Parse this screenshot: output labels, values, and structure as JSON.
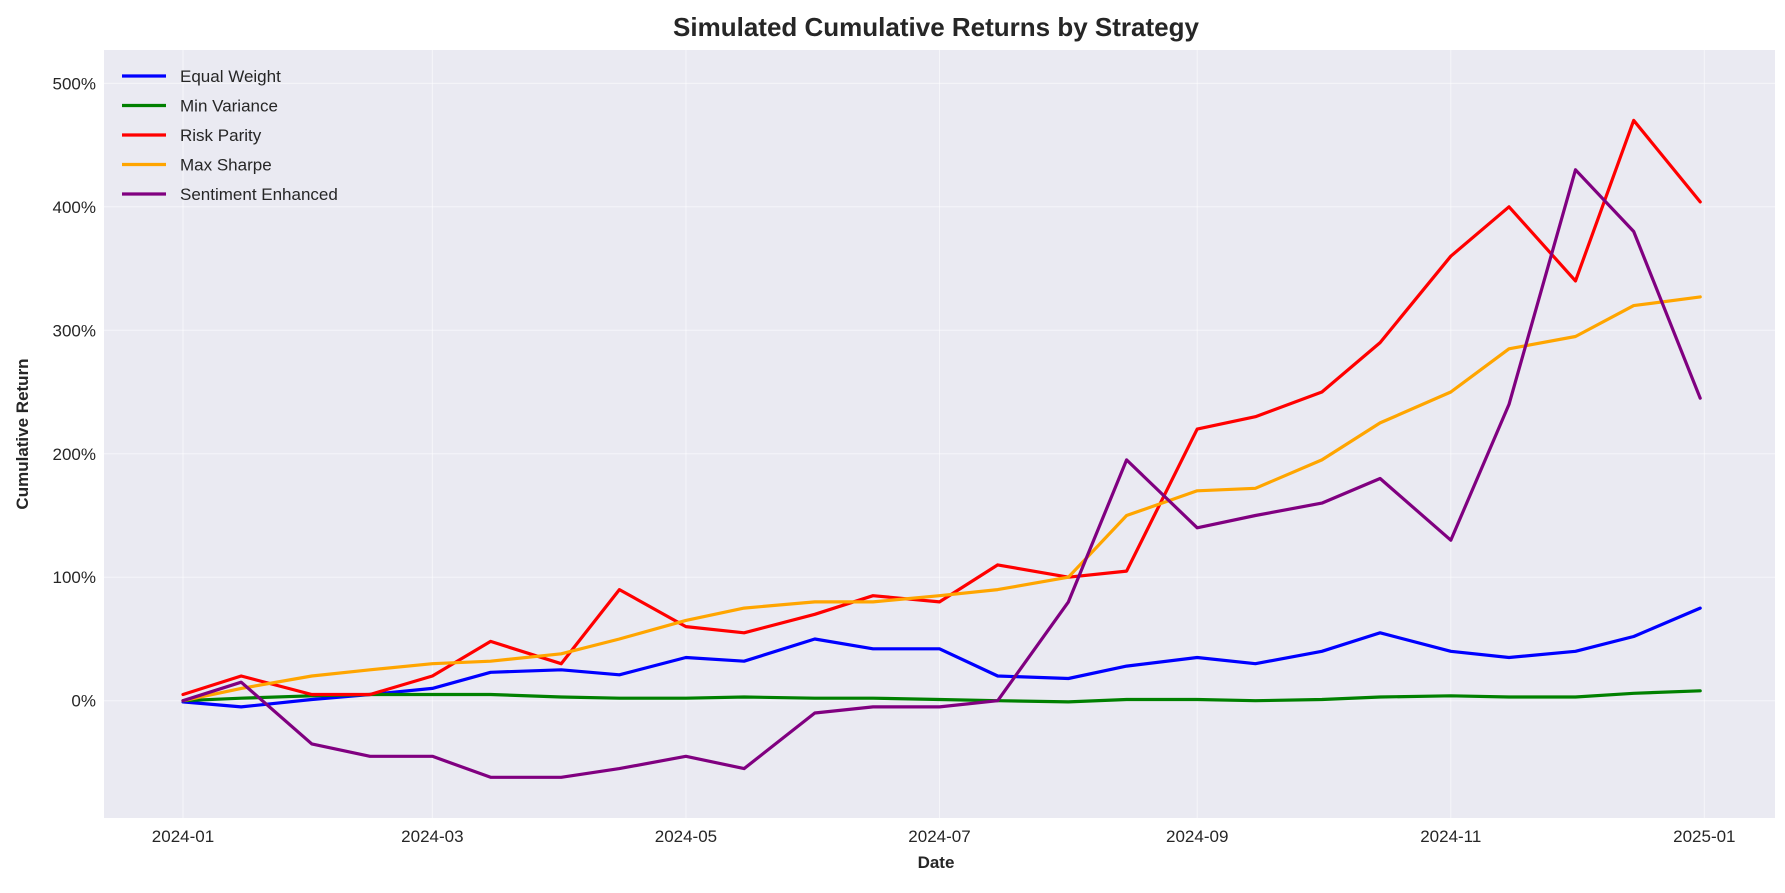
{
  "chart_data": {
    "type": "line",
    "title": "Simulated Cumulative Returns by Strategy",
    "xlabel": "Date",
    "ylabel": "Cumulative Return",
    "x_ticks": [
      "2024-01",
      "2024-03",
      "2024-05",
      "2024-07",
      "2024-09",
      "2024-11",
      "2025-01"
    ],
    "y_ticks": [
      "0%",
      "100%",
      "200%",
      "300%",
      "400%",
      "500%"
    ],
    "xlim": [
      "2023-12-13",
      "2025-01-18"
    ],
    "ylim": [
      -95,
      527
    ],
    "grid": true,
    "legend_position": "top-left",
    "x": [
      "2024-01-01",
      "2024-01-15",
      "2024-02-01",
      "2024-02-15",
      "2024-03-01",
      "2024-03-15",
      "2024-04-01",
      "2024-04-15",
      "2024-05-01",
      "2024-05-15",
      "2024-06-01",
      "2024-06-15",
      "2024-07-01",
      "2024-07-15",
      "2024-08-01",
      "2024-08-15",
      "2024-09-01",
      "2024-09-15",
      "2024-10-01",
      "2024-10-15",
      "2024-11-01",
      "2024-11-15",
      "2024-12-01",
      "2024-12-15",
      "2024-12-31"
    ],
    "series": [
      {
        "name": "Equal Weight",
        "color": "#0000ff",
        "values": [
          -1,
          -5,
          1,
          5,
          10,
          23,
          25,
          21,
          35,
          32,
          50,
          42,
          42,
          20,
          18,
          28,
          35,
          30,
          40,
          55,
          40,
          35,
          40,
          52,
          75
        ]
      },
      {
        "name": "Min Variance",
        "color": "#008000",
        "values": [
          0,
          2,
          4,
          5,
          5,
          5,
          3,
          2,
          2,
          3,
          2,
          2,
          1,
          0,
          -1,
          1,
          1,
          0,
          1,
          3,
          4,
          3,
          3,
          6,
          8
        ]
      },
      {
        "name": "Risk Parity",
        "color": "#ff0000",
        "values": [
          5,
          20,
          5,
          5,
          20,
          48,
          30,
          90,
          60,
          55,
          70,
          85,
          80,
          110,
          100,
          105,
          220,
          230,
          250,
          290,
          360,
          400,
          340,
          470,
          404
        ]
      },
      {
        "name": "Max Sharpe",
        "color": "#ffa500",
        "values": [
          0,
          10,
          20,
          25,
          30,
          32,
          38,
          50,
          65,
          75,
          80,
          80,
          85,
          90,
          100,
          150,
          170,
          172,
          195,
          225,
          250,
          285,
          295,
          320,
          327
        ]
      },
      {
        "name": "Sentiment Enhanced",
        "color": "#800080",
        "values": [
          0,
          15,
          -35,
          -45,
          -45,
          -62,
          -62,
          -55,
          -45,
          -55,
          -10,
          -5,
          -5,
          0,
          80,
          195,
          140,
          150,
          160,
          180,
          130,
          240,
          430,
          380,
          245
        ]
      }
    ]
  }
}
